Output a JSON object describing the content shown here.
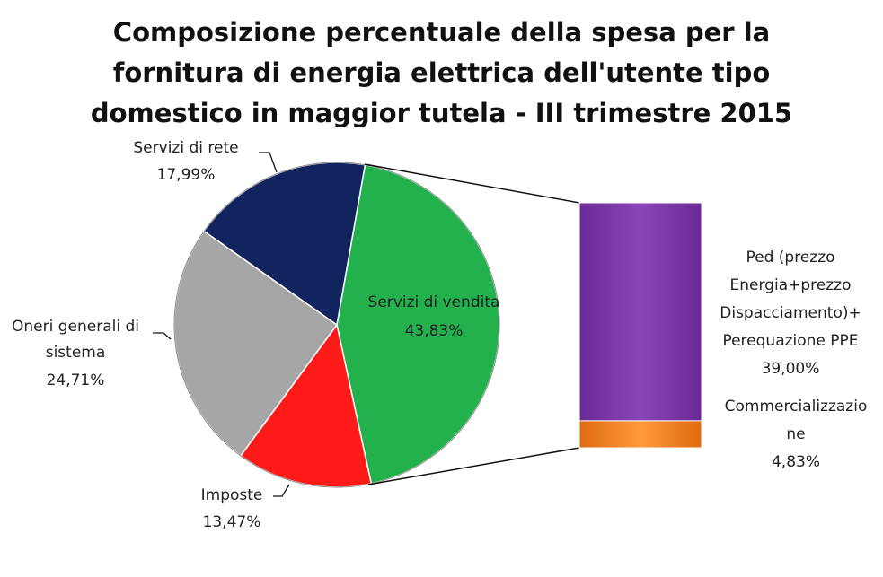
{
  "chart_data": {
    "type": "pie",
    "title_lines": [
      "Composizione percentuale della spesa per la",
      "fornitura di energia elettrica dell'utente tipo",
      "domestico in maggior tutela - III trimestre 2015"
    ],
    "slices": [
      {
        "name": "Servizi di vendita",
        "value_label": "43,83%",
        "value": 43.83,
        "color": "#22b14c"
      },
      {
        "name": "Imposte",
        "value_label": "13,47%",
        "value": 13.47,
        "color": "#ff1a1a"
      },
      {
        "name": "Oneri generali di sistema",
        "label_lines": [
          "Oneri generali di",
          "sistema"
        ],
        "value_label": "24,71%",
        "value": 24.71,
        "color": "#a6a6a6"
      },
      {
        "name": "Servizi di rete",
        "value_label": "17,99%",
        "value": 17.99,
        "color": "#12245e"
      }
    ],
    "breakdown": {
      "of": "Servizi di vendita",
      "type": "stacked-bar",
      "segments": [
        {
          "label_lines": [
            "Ped (prezzo",
            "Energia+prezzo",
            "Dispacciamento)+",
            "Perequazione PPE"
          ],
          "value_label": "39,00%",
          "value": 39.0,
          "color": "#7a35a8"
        },
        {
          "label_lines": [
            "Commercializzazio",
            "ne"
          ],
          "value_label": "4,83%",
          "value": 4.83,
          "color": "#f47c20"
        }
      ]
    }
  }
}
